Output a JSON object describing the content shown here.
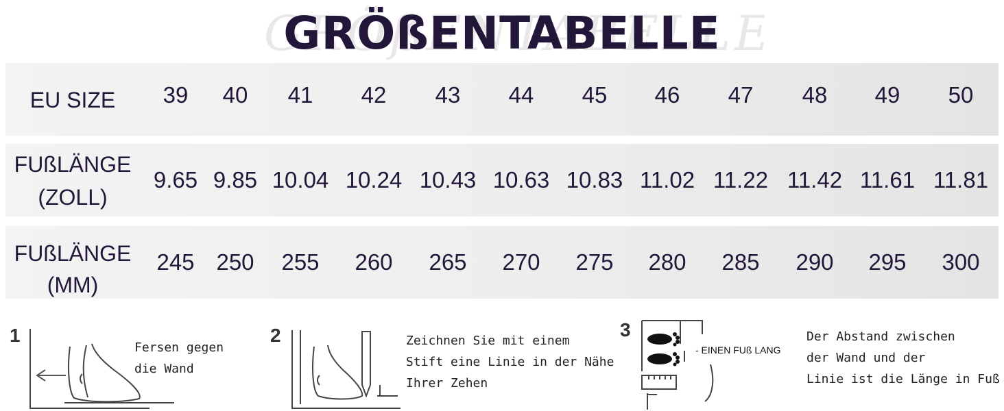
{
  "watermark": "GRÖßENTABELLE",
  "title": "GRÖßENTABELLE",
  "rows": [
    {
      "label_lines": [
        "EU SIZE"
      ],
      "values": [
        "39",
        "40",
        "41",
        "42",
        "43",
        "44",
        "45",
        "46",
        "47",
        "48",
        "49",
        "50"
      ]
    },
    {
      "label_lines": [
        "FUßLÄNGE",
        "(ZOLL)"
      ],
      "values": [
        "9.65",
        "9.85",
        "10.04",
        "10.24",
        "10.43",
        "10.63",
        "10.83",
        "11.02",
        "11.22",
        "11.42",
        "11.61",
        "11.81"
      ]
    },
    {
      "label_lines": [
        "FUßLÄNGE",
        "(MM)"
      ],
      "values": [
        "245",
        "250",
        "255",
        "260",
        "265",
        "270",
        "275",
        "280",
        "285",
        "290",
        "295",
        "300"
      ]
    }
  ],
  "steps": [
    {
      "number": "1",
      "text_lines": [
        "Fersen gegen",
        "die Wand"
      ]
    },
    {
      "number": "2",
      "text_lines": [
        "Zeichnen Sie mit einem",
        "Stift eine Linie in der Nähe",
        "Ihrer Zehen"
      ]
    },
    {
      "number": "3",
      "badge": "- EINEN FUß LANG",
      "text_lines": [
        "Der Abstand zwischen",
        "der Wand und der",
        "Linie ist die Länge in Fuß"
      ]
    }
  ]
}
